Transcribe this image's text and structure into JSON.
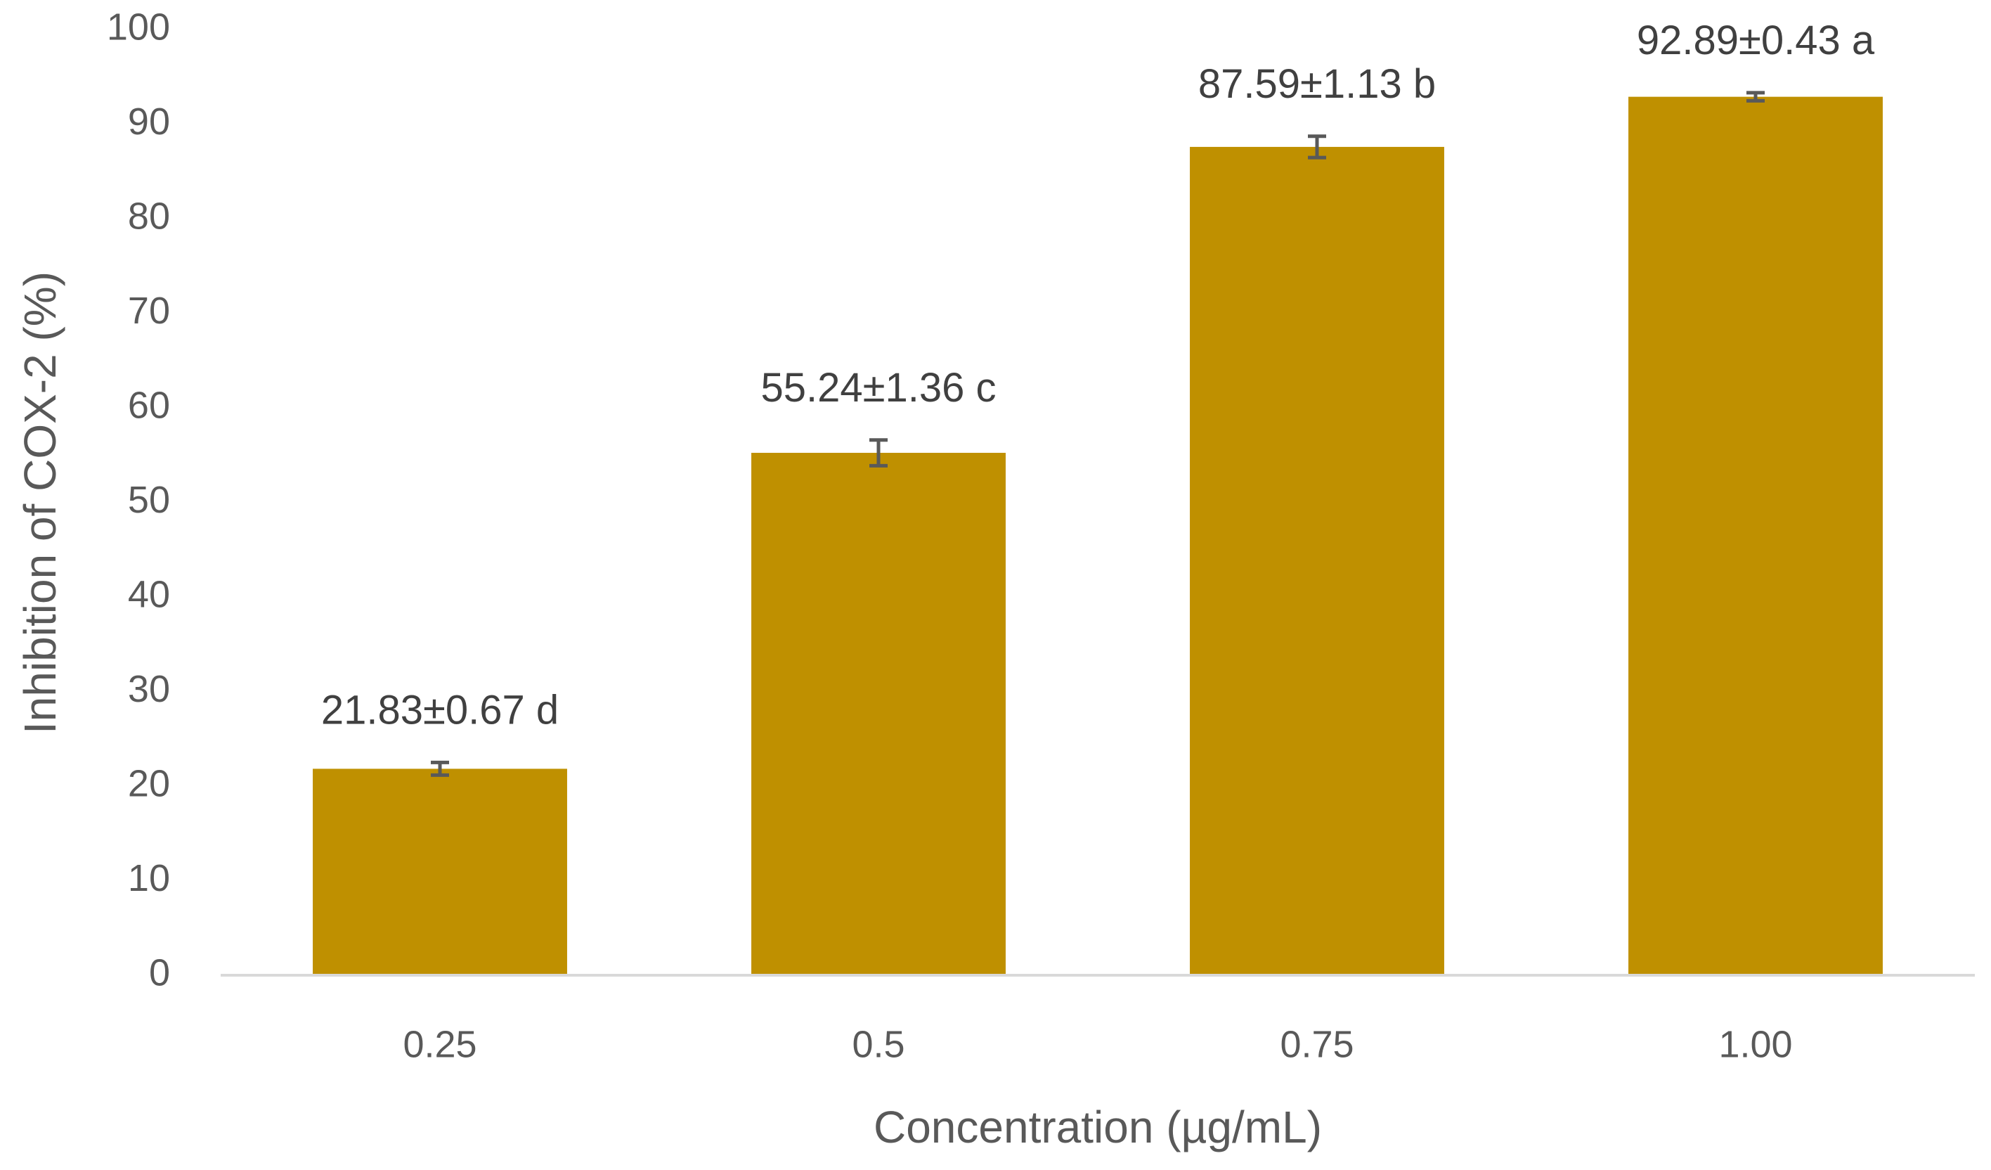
{
  "chart_data": {
    "type": "bar",
    "categories": [
      "0.25",
      "0.5",
      "0.75",
      "1.00"
    ],
    "values": [
      21.83,
      55.24,
      87.59,
      92.89
    ],
    "errors": [
      0.67,
      1.36,
      1.13,
      0.43
    ],
    "value_labels": [
      "21.83±0.67 d",
      "55.24±1.36 c",
      "87.59±1.13 b",
      "92.89±0.43 a"
    ],
    "color": "#bf9000",
    "error_color": "#595959",
    "x_label": "Concentration (µg/mL)",
    "y_label": "Inhibition of COX-2 (%)",
    "ylim": [
      0,
      100
    ],
    "yticks": [
      0,
      10,
      20,
      30,
      40,
      50,
      60,
      70,
      80,
      90,
      100
    ],
    "grid": false
  }
}
